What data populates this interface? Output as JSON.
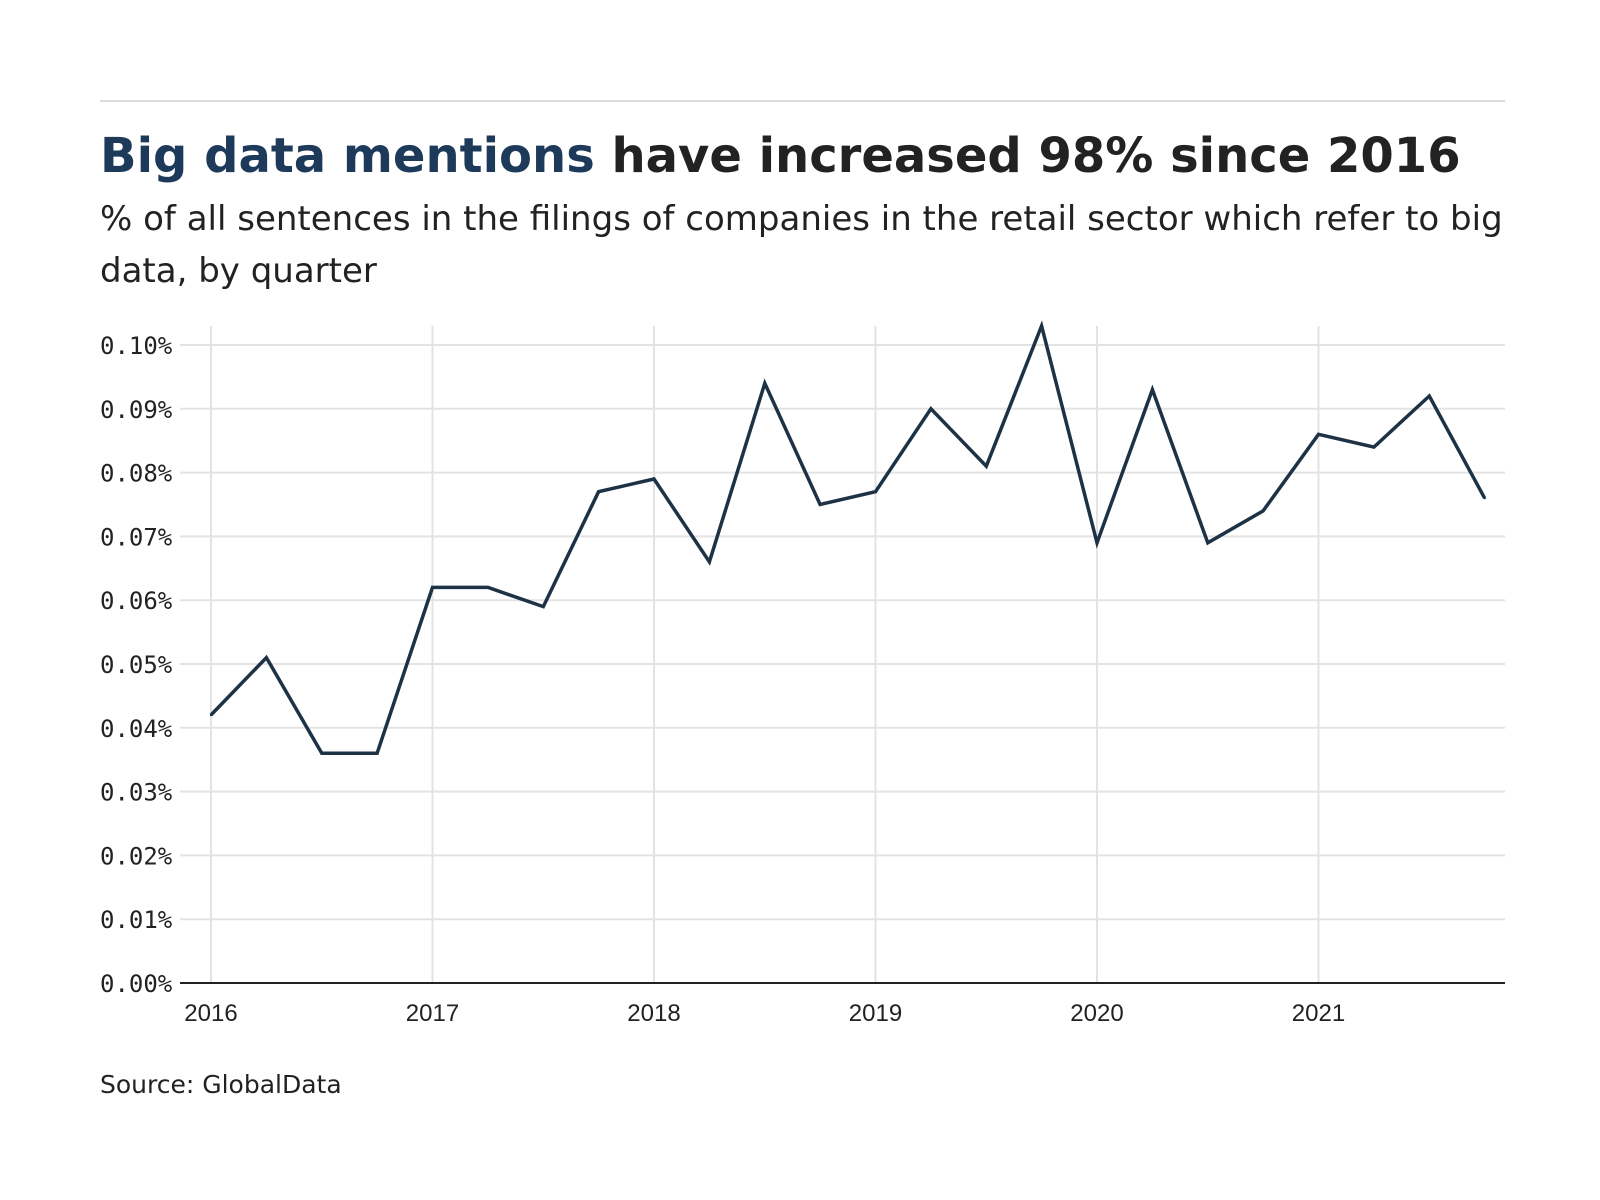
{
  "header": {
    "title_highlight": "Big data mentions",
    "title_rest": " have increased 98% since 2016",
    "subtitle": "% of all sentences in the filings of companies in the retail sector which refer to big data, by quarter"
  },
  "footer": {
    "source": "Source: GlobalData"
  },
  "colors": {
    "line": "#1e3246",
    "title_highlight": "#1e3a5a",
    "grid": "#e3e3e3",
    "axis": "#222222"
  },
  "chart_data": {
    "type": "line",
    "x_tick_labels": [
      "2016",
      "2017",
      "2018",
      "2019",
      "2020",
      "2021"
    ],
    "y_tick_labels": [
      "0.00%",
      "0.01%",
      "0.02%",
      "0.03%",
      "0.04%",
      "0.05%",
      "0.06%",
      "0.07%",
      "0.08%",
      "0.09%",
      "0.10%"
    ],
    "ylim": [
      0,
      0.1
    ],
    "xlim": [
      2016,
      2021.8
    ],
    "grid": true,
    "series": [
      {
        "x": [
          "2016 Q1",
          "2016 Q2",
          "2016 Q3",
          "2016 Q4",
          "2017 Q1",
          "2017 Q2",
          "2017 Q3",
          "2017 Q4",
          "2018 Q1",
          "2018 Q2",
          "2018 Q3",
          "2018 Q4",
          "2019 Q1",
          "2019 Q2",
          "2019 Q3",
          "2019 Q4",
          "2020 Q1",
          "2020 Q2",
          "2020 Q3",
          "2020 Q4",
          "2021 Q1",
          "2021 Q2",
          "2021 Q3",
          "2021 Q4"
        ],
        "values": [
          0.042,
          0.051,
          0.036,
          0.036,
          0.062,
          0.062,
          0.059,
          0.077,
          0.079,
          0.066,
          0.094,
          0.075,
          0.077,
          0.09,
          0.081,
          0.103,
          0.069,
          0.093,
          0.069,
          0.074,
          0.086,
          0.084,
          0.092,
          0.076
        ]
      }
    ]
  }
}
